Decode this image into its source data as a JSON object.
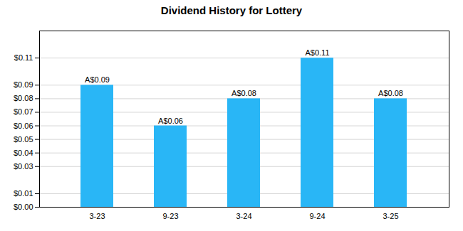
{
  "chart_data": {
    "type": "bar",
    "title": "Dividend History for Lottery",
    "categories": [
      "3-23",
      "9-23",
      "3-24",
      "9-24",
      "3-25"
    ],
    "values": [
      0.09,
      0.06,
      0.08,
      0.11,
      0.08
    ],
    "value_labels": [
      "A$0.09",
      "A$0.06",
      "A$0.08",
      "A$0.11",
      "A$0.08"
    ],
    "data_labels": true,
    "color": "#29b6f6",
    "ylim": [
      0,
      0.13
    ],
    "yticks": [
      {
        "value": 0.0,
        "label": "$0.00"
      },
      {
        "value": 0.01,
        "label": "$0.01"
      },
      {
        "value": 0.03,
        "label": "$0.03"
      },
      {
        "value": 0.04,
        "label": "$0.04"
      },
      {
        "value": 0.05,
        "label": "$0.05"
      },
      {
        "value": 0.06,
        "label": "$0.06"
      },
      {
        "value": 0.07,
        "label": "$0.07"
      },
      {
        "value": 0.08,
        "label": "$0.08"
      },
      {
        "value": 0.09,
        "label": "$0.09"
      },
      {
        "value": 0.11,
        "label": "$0.11"
      }
    ],
    "grid": true
  }
}
